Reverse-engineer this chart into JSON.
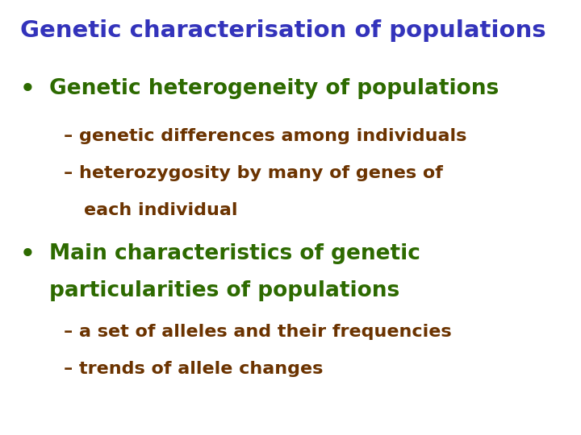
{
  "background_color": "#ffffff",
  "title": "Genetic characterisation of populations",
  "title_color": "#3333bb",
  "title_fontsize": 21,
  "bullet_color": "#2d6a00",
  "sub_color": "#6b3300",
  "bullet1": "Genetic heterogeneity of populations",
  "sub1a": "– genetic differences among individuals",
  "sub1b_line1": "– heterozygosity by many of genes of",
  "sub1b_line2": "  each individual",
  "bullet2_line1": "Main characteristics of genetic",
  "bullet2_line2": "particularities of populations",
  "sub2a": "– a set of alleles and their frequencies",
  "sub2b": "– trends of allele changes",
  "bullet_fontsize": 19,
  "sub_fontsize": 16
}
